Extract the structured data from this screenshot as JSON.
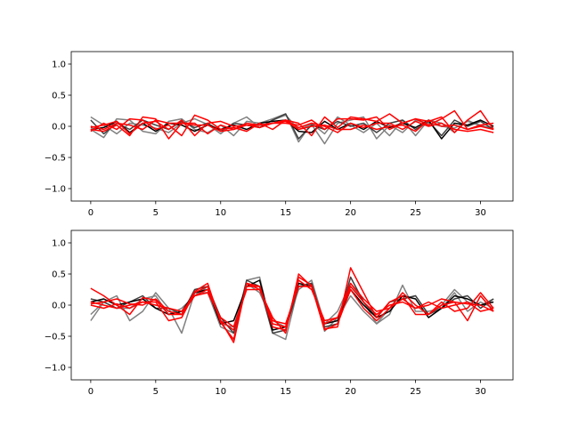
{
  "chart_data": [
    {
      "type": "line",
      "xlim": [
        -1.5,
        32.5
      ],
      "ylim": [
        -1.2,
        1.2
      ],
      "xticks": [
        0,
        5,
        10,
        15,
        20,
        25,
        30
      ],
      "yticks": [
        -1.0,
        -0.5,
        0.0,
        0.5,
        1.0
      ],
      "xtick_labels": [
        "0",
        "5",
        "10",
        "15",
        "20",
        "25",
        "30"
      ],
      "ytick_labels": [
        "−1.0",
        "−0.5",
        "0.0",
        "0.5",
        "1.0"
      ],
      "grid": false,
      "series": [
        {
          "color": "#808080",
          "values": [
            0.15,
            0.02,
            -0.12,
            0.05,
            0.02,
            -0.03,
            -0.1,
            0.05,
            0.12,
            0.03,
            -0.12,
            0.05,
            0.15,
            -0.02,
            0.1,
            0.18,
            -0.05,
            0.03,
            -0.28,
            0.05,
            0.1,
            0.15,
            -0.2,
            0.02,
            -0.1,
            0.1,
            0.05,
            0.0,
            -0.03,
            0.08,
            0.02,
            -0.05
          ]
        },
        {
          "color": "#808080",
          "values": [
            -0.05,
            -0.18,
            0.12,
            0.1,
            -0.08,
            -0.12,
            0.08,
            0.12,
            -0.05,
            -0.1,
            0.02,
            -0.15,
            0.08,
            0.05,
            0.12,
            0.2,
            -0.25,
            0.05,
            -0.12,
            0.15,
            0.02,
            -0.1,
            0.05,
            -0.15,
            0.1,
            -0.15,
            0.1,
            0.05,
            -0.1,
            0.1,
            0.0,
            -0.02
          ]
        },
        {
          "color": "#404040",
          "values": [
            0.1,
            -0.12,
            0.05,
            -0.05,
            0.1,
            0.02,
            -0.05,
            0.08,
            -0.02,
            0.05,
            -0.08,
            0.05,
            0.02,
            -0.02,
            0.1,
            0.2,
            -0.2,
            0.02,
            -0.05,
            0.08,
            0.0,
            0.05,
            -0.1,
            0.05,
            0.1,
            -0.05,
            0.08,
            -0.15,
            0.1,
            0.0,
            0.08,
            -0.05
          ]
        },
        {
          "color": "#000000",
          "values": [
            -0.05,
            -0.02,
            0.08,
            -0.1,
            0.05,
            -0.08,
            0.05,
            0.02,
            -0.08,
            0.02,
            -0.05,
            0.02,
            -0.05,
            0.05,
            0.08,
            0.1,
            -0.08,
            -0.1,
            0.08,
            -0.05,
            0.05,
            -0.05,
            0.08,
            -0.02,
            0.05,
            -0.02,
            0.1,
            -0.2,
            0.05,
            0.02,
            0.1,
            0.0
          ]
        },
        {
          "color": "#ff0000",
          "values": [
            -0.08,
            0.05,
            -0.05,
            0.12,
            0.1,
            -0.05,
            0.02,
            -0.15,
            0.18,
            0.1,
            -0.05,
            -0.02,
            -0.08,
            0.05,
            -0.05,
            0.1,
            0.05,
            -0.15,
            0.15,
            -0.02,
            0.15,
            0.12,
            0.08,
            0.2,
            0.05,
            0.12,
            0.08,
            0.15,
            -0.1,
            0.1,
            0.25,
            -0.05
          ]
        },
        {
          "color": "#ff0000",
          "values": [
            -0.05,
            -0.08,
            0.02,
            -0.15,
            0.15,
            0.12,
            -0.2,
            0.05,
            0.05,
            -0.12,
            0.02,
            -0.05,
            0.05,
            0.02,
            0.05,
            0.05,
            0.02,
            0.1,
            -0.05,
            0.12,
            0.12,
            0.1,
            0.15,
            -0.05,
            0.05,
            0.12,
            0.02,
            0.12,
            0.25,
            -0.05,
            0.02,
            0.05
          ]
        },
        {
          "color": "#ff0000",
          "values": [
            -0.02,
            0.02,
            0.08,
            -0.12,
            0.05,
            0.08,
            -0.05,
            0.1,
            -0.15,
            0.05,
            0.08,
            0.0,
            0.02,
            0.02,
            0.05,
            0.1,
            -0.02,
            0.05,
            0.0,
            -0.1,
            0.05,
            -0.02,
            0.05,
            0.05,
            -0.05,
            0.08,
            0.0,
            0.05,
            -0.05,
            -0.08,
            -0.05,
            -0.1
          ]
        },
        {
          "color": "#ff0000",
          "values": [
            0.0,
            -0.05,
            0.05,
            0.02,
            -0.05,
            0.1,
            0.05,
            0.05,
            0.02,
            0.02,
            -0.08,
            -0.05,
            0.02,
            -0.02,
            0.05,
            0.08,
            -0.05,
            0.0,
            0.02,
            -0.05,
            -0.05,
            0.02,
            -0.05,
            0.0,
            0.02,
            -0.08,
            0.1,
            0.0,
            0.02,
            -0.05,
            0.0,
            -0.05
          ]
        }
      ]
    },
    {
      "type": "line",
      "xlim": [
        -1.5,
        32.5
      ],
      "ylim": [
        -1.2,
        1.2
      ],
      "xticks": [
        0,
        5,
        10,
        15,
        20,
        25,
        30
      ],
      "yticks": [
        -1.0,
        -0.5,
        0.0,
        0.5,
        1.0
      ],
      "xtick_labels": [
        "0",
        "5",
        "10",
        "15",
        "20",
        "25",
        "30"
      ],
      "ytick_labels": [
        "−1.0",
        "−0.5",
        "0.0",
        "0.5",
        "1.0"
      ],
      "grid": false,
      "series": [
        {
          "color": "#808080",
          "values": [
            -0.25,
            0.05,
            0.15,
            -0.25,
            -0.1,
            0.2,
            -0.05,
            -0.45,
            0.2,
            0.2,
            -0.35,
            -0.45,
            0.4,
            0.45,
            -0.45,
            -0.55,
            0.3,
            0.35,
            -0.42,
            -0.2,
            0.15,
            -0.1,
            -0.3,
            -0.15,
            0.32,
            -0.1,
            -0.1,
            -0.05,
            0.2,
            -0.1,
            0.05,
            -0.05
          ]
        },
        {
          "color": "#808080",
          "values": [
            -0.15,
            0.05,
            -0.05,
            -0.05,
            0.1,
            0.15,
            -0.15,
            -0.05,
            0.15,
            0.3,
            -0.3,
            -0.35,
            0.35,
            0.2,
            -0.25,
            -0.35,
            0.25,
            0.4,
            -0.3,
            -0.1,
            0.35,
            0.05,
            -0.3,
            -0.05,
            0.1,
            0.15,
            -0.15,
            0.0,
            0.25,
            0.05,
            0.0,
            0.1
          ]
        },
        {
          "color": "#404040",
          "values": [
            0.1,
            0.05,
            -0.05,
            0.05,
            0.15,
            -0.05,
            -0.05,
            -0.15,
            0.25,
            0.3,
            -0.2,
            -0.45,
            0.4,
            0.3,
            -0.45,
            -0.4,
            0.3,
            0.35,
            -0.35,
            -0.3,
            0.45,
            0.05,
            -0.2,
            0.05,
            0.1,
            0.15,
            -0.15,
            -0.05,
            0.1,
            0.15,
            -0.05,
            0.1
          ]
        },
        {
          "color": "#000000",
          "values": [
            0.05,
            0.1,
            0.0,
            0.05,
            0.1,
            -0.05,
            -0.15,
            -0.1,
            0.2,
            0.25,
            -0.3,
            -0.25,
            0.3,
            0.4,
            -0.4,
            -0.35,
            0.35,
            0.3,
            -0.3,
            -0.25,
            0.25,
            0.0,
            -0.2,
            -0.1,
            0.15,
            0.1,
            -0.2,
            -0.05,
            0.15,
            0.1,
            0.0,
            0.05
          ]
        },
        {
          "color": "#ff0000",
          "values": [
            0.27,
            0.15,
            0.0,
            -0.15,
            0.12,
            0.08,
            -0.15,
            -0.15,
            0.22,
            0.35,
            -0.28,
            -0.55,
            0.35,
            0.3,
            -0.35,
            -0.4,
            0.45,
            0.32,
            -0.38,
            -0.35,
            0.6,
            0.2,
            -0.2,
            0.05,
            0.15,
            -0.15,
            -0.15,
            0.05,
            -0.1,
            -0.05,
            0.2,
            -0.05
          ]
        },
        {
          "color": "#ff0000",
          "values": [
            0.05,
            0.0,
            -0.05,
            0.0,
            0.05,
            0.05,
            -0.25,
            -0.2,
            0.2,
            0.3,
            -0.25,
            -0.6,
            0.35,
            0.25,
            -0.2,
            -0.45,
            0.5,
            0.3,
            -0.4,
            -0.3,
            0.25,
            -0.05,
            -0.25,
            -0.05,
            0.2,
            0.0,
            -0.15,
            0.0,
            0.05,
            -0.25,
            0.15,
            -0.1
          ]
        },
        {
          "color": "#ff0000",
          "values": [
            0.02,
            0.05,
            0.1,
            0.02,
            0.0,
            0.1,
            -0.1,
            -0.15,
            0.15,
            0.25,
            -0.25,
            -0.4,
            0.3,
            0.3,
            -0.3,
            -0.35,
            0.4,
            0.25,
            -0.25,
            -0.2,
            0.3,
            0.05,
            -0.15,
            0.0,
            0.05,
            -0.05,
            0.05,
            -0.05,
            0.0,
            0.05,
            -0.1,
            -0.05
          ]
        },
        {
          "color": "#ff0000",
          "values": [
            0.0,
            -0.05,
            0.02,
            -0.05,
            0.05,
            0.0,
            -0.05,
            -0.1,
            0.15,
            0.2,
            -0.2,
            -0.35,
            0.25,
            0.25,
            -0.25,
            -0.3,
            0.3,
            0.3,
            -0.3,
            -0.2,
            0.35,
            0.1,
            -0.1,
            -0.05,
            0.1,
            -0.05,
            0.0,
            0.1,
            0.05,
            0.02,
            0.0,
            -0.1
          ]
        }
      ]
    }
  ]
}
